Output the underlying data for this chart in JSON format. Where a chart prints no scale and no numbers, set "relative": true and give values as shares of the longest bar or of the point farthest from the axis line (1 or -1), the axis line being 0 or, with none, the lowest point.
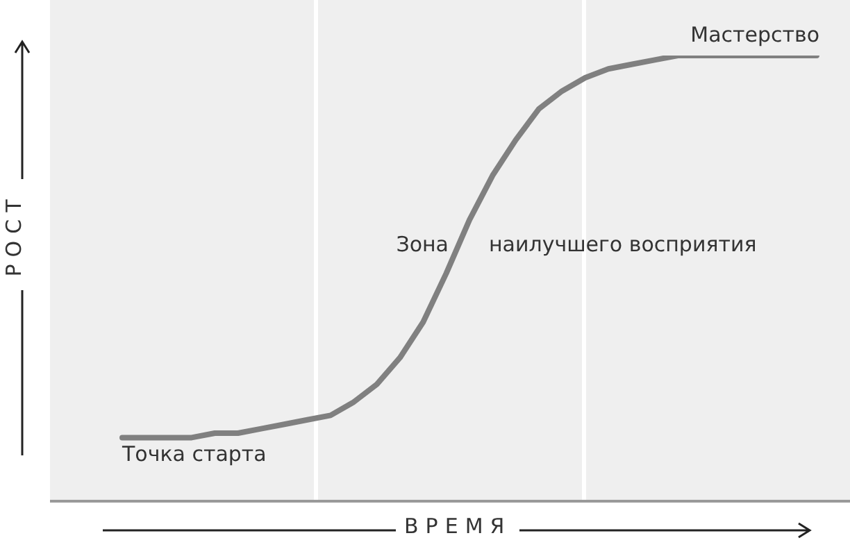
{
  "chart_data": {
    "type": "line",
    "relative": true,
    "xlabel": "ВРЕМЯ",
    "ylabel": "РОСТ",
    "categories": [
      null,
      null,
      null,
      null,
      null,
      null,
      null,
      null,
      null,
      null,
      null,
      null,
      null,
      null,
      null,
      null,
      null,
      null,
      null,
      null,
      null,
      null,
      null,
      null,
      null,
      null,
      null,
      null,
      null,
      null,
      null
    ],
    "series": [
      {
        "color": "#808080",
        "values": [
          0.14,
          0.14,
          0.14,
          0.14,
          0.15,
          0.15,
          0.16,
          0.17,
          0.18,
          0.19,
          0.22,
          0.26,
          0.32,
          0.4,
          0.51,
          0.63,
          0.73,
          0.81,
          0.88,
          0.92,
          0.95,
          0.97,
          0.98,
          0.99,
          1,
          1,
          1,
          1,
          1,
          1,
          1
        ]
      }
    ],
    "annotations": [
      "Мастерство",
      "Точка старта",
      "Зона наилучшего восприятия"
    ],
    "grid": false,
    "legend": false,
    "marker": "none",
    "line_style": "solid"
  }
}
